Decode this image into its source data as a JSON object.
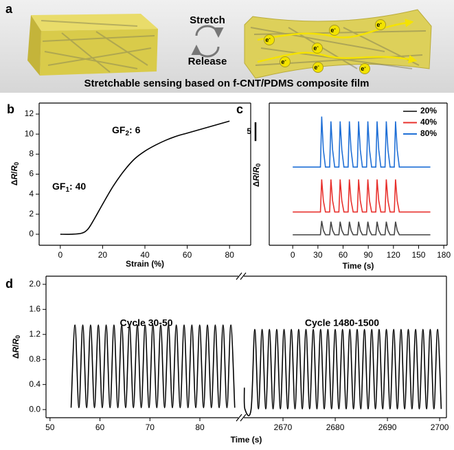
{
  "panel_a": {
    "label": "a",
    "stretch": "Stretch",
    "release": "Release",
    "caption": "Stretchable sensing based on f-CNT/PDMS composite film",
    "electron": {
      "base": "e",
      "sup": "-"
    }
  },
  "chart_data": [
    {
      "type": "line",
      "panel_label": "b",
      "xlabel": "Strain (%)",
      "ylabel": [
        "Δ",
        "R",
        "/",
        "R",
        "0"
      ],
      "color": "#000000",
      "x": [
        0,
        5,
        10,
        13,
        16,
        20,
        25,
        30,
        35,
        40,
        45,
        50,
        55,
        60,
        65,
        70,
        75,
        80
      ],
      "values": [
        0,
        0,
        0.1,
        0.5,
        1.5,
        3,
        4.8,
        6.3,
        7.5,
        8.3,
        8.9,
        9.4,
        9.8,
        10.1,
        10.4,
        10.7,
        11,
        11.3
      ],
      "xlim": [
        -10,
        90
      ],
      "ylim": [
        -1.1,
        13.1
      ],
      "xticks": [
        0,
        20,
        40,
        60,
        80
      ],
      "yticks": [
        0,
        2,
        4,
        6,
        8,
        10,
        12
      ],
      "annotations": [
        {
          "text": "GF",
          "sub": "1",
          "rest": ": 40"
        },
        {
          "text": "GF",
          "sub": "2",
          "rest": ": 6"
        }
      ]
    },
    {
      "type": "line",
      "panel_label": "c",
      "xlabel": "Time (s)",
      "ylabel": [
        "Δ",
        "R",
        "/",
        "R",
        "0"
      ],
      "scale_bar": 5,
      "legend": "upper right",
      "xlim": [
        -28,
        184
      ],
      "ylim": [
        0,
        38
      ],
      "xticks": [
        0,
        30,
        60,
        90,
        120,
        150,
        180
      ],
      "x": [
        0,
        33,
        34.5,
        36.5,
        39,
        44,
        45.5,
        47.5,
        50,
        55,
        56.5,
        58.5,
        61,
        66,
        67.5,
        69.5,
        72,
        77,
        78.5,
        80.5,
        83,
        88,
        89.5,
        91.5,
        94,
        99,
        100.5,
        102.5,
        105,
        110,
        111.5,
        113.5,
        116,
        121,
        122.5,
        124.5,
        127,
        164
      ],
      "series": [
        {
          "name": "20%",
          "color": "#444444",
          "values": [
            2.8,
            2.8,
            6.5,
            4.0,
            2.8,
            2.8,
            6.3,
            4.0,
            2.8,
            2.8,
            6.3,
            4.0,
            2.8,
            2.8,
            6.3,
            4.0,
            2.8,
            2.8,
            6.3,
            4.0,
            2.8,
            2.8,
            6.3,
            4.0,
            2.8,
            2.8,
            6.3,
            4.0,
            2.8,
            2.8,
            6.3,
            4.0,
            2.8,
            2.8,
            6.3,
            4.0,
            2.8,
            2.8
          ]
        },
        {
          "name": "40%",
          "color": "#e8302c",
          "values": [
            8.9,
            8.9,
            17.6,
            11.9,
            8.9,
            8.9,
            17.6,
            11.9,
            8.9,
            8.9,
            17.6,
            11.9,
            8.9,
            8.9,
            17.6,
            11.9,
            8.9,
            8.9,
            17.6,
            11.9,
            8.9,
            8.9,
            17.6,
            11.9,
            8.9,
            8.9,
            17.6,
            11.9,
            8.9,
            8.9,
            17.6,
            11.9,
            8.9,
            8.9,
            17.6,
            11.9,
            8.9,
            8.9
          ]
        },
        {
          "name": "80%",
          "color": "#1f6fd6",
          "values": [
            20.9,
            20.9,
            34.4,
            25.5,
            20.9,
            20.9,
            33.1,
            25.5,
            20.9,
            20.9,
            33.1,
            25.5,
            20.9,
            20.9,
            33.1,
            25.5,
            20.9,
            20.9,
            33.1,
            25.5,
            20.9,
            20.9,
            33.1,
            25.5,
            20.9,
            20.9,
            33.1,
            25.5,
            20.9,
            20.9,
            33.1,
            25.5,
            20.9,
            20.9,
            33.1,
            25.5,
            20.9,
            20.9
          ]
        }
      ]
    },
    {
      "type": "line",
      "panel_label": "d",
      "xlabel": "Time (s)",
      "ylabel": [
        "Δ",
        "R",
        "/",
        "R",
        "0"
      ],
      "color": "#000000",
      "ylim": [
        -0.13,
        2.13
      ],
      "yticks": [
        {
          "value": 0,
          "label": "0.0"
        },
        0.4,
        0.8,
        1.2,
        1.6,
        {
          "value": 2,
          "label": "2.0"
        }
      ],
      "annotations": [
        "Cycle 30-50",
        "Cycle 1480-1500"
      ],
      "segments": [
        {
          "xlim": [
            49.2,
            87.7
          ],
          "xticks": [
            50,
            60,
            70,
            80
          ],
          "x": [
            54.22,
            55.0,
            55.78,
            56.56,
            57.34,
            58.12,
            58.9,
            59.68,
            60.46,
            61.24,
            62.02,
            62.8,
            63.58,
            64.36,
            65.14,
            65.92,
            66.7,
            67.48,
            68.26,
            69.04,
            69.82,
            70.6,
            71.38,
            72.16,
            72.94,
            73.72,
            74.5,
            75.28,
            76.06,
            76.84,
            77.62,
            78.4,
            79.18,
            79.96,
            80.74,
            81.52,
            82.3,
            83.08,
            83.86,
            84.64,
            85.42,
            86.2,
            86.98
          ],
          "values": [
            0.03,
            1.35,
            0.03,
            1.35,
            0.03,
            1.35,
            0.03,
            1.35,
            0.03,
            1.35,
            0.03,
            1.35,
            0.03,
            1.35,
            0.03,
            1.35,
            0.03,
            1.35,
            0.03,
            1.35,
            0.03,
            1.35,
            0.03,
            1.35,
            0.03,
            1.35,
            0.03,
            1.35,
            0.03,
            1.35,
            0.03,
            1.35,
            0.03,
            1.35,
            0.03,
            1.35,
            0.03,
            1.35,
            0.03,
            1.35,
            0.03,
            1.35,
            0.03
          ]
        },
        {
          "xlim": [
            2662.5,
            2701.3
          ],
          "xticks": [
            2670,
            2680,
            2690,
            2700
          ],
          "x": [
            2662.6,
            2662.7,
            2663.9,
            2664.6,
            2665.3,
            2666.0,
            2666.7,
            2667.4,
            2668.1,
            2668.8,
            2669.5,
            2670.2,
            2670.9,
            2671.6,
            2672.3,
            2673.0,
            2673.7,
            2674.4,
            2675.1,
            2675.8,
            2676.5,
            2677.2,
            2677.9,
            2678.6,
            2679.3,
            2680.0,
            2680.7,
            2681.4,
            2682.1,
            2682.8,
            2683.5,
            2684.2,
            2684.9,
            2685.6,
            2686.3,
            2687.0,
            2687.7,
            2688.4,
            2689.1,
            2689.8,
            2690.5,
            2691.2,
            2691.9,
            2692.6,
            2693.3,
            2694.0,
            2694.7,
            2695.4,
            2696.1,
            2696.8,
            2697.5,
            2698.2,
            2698.9,
            2699.6,
            2700.3
          ],
          "values": [
            0.35,
            0.01,
            0.01,
            1.28,
            0.01,
            1.28,
            0.01,
            1.28,
            0.01,
            1.28,
            0.01,
            1.28,
            0.01,
            1.28,
            0.01,
            1.28,
            0.01,
            1.28,
            0.01,
            1.28,
            0.01,
            1.28,
            0.01,
            1.28,
            0.01,
            1.28,
            0.01,
            1.28,
            0.01,
            1.28,
            0.01,
            1.28,
            0.01,
            1.28,
            0.01,
            1.28,
            0.01,
            1.28,
            0.01,
            1.28,
            0.01,
            1.28,
            0.01,
            1.28,
            0.01,
            1.28,
            0.01,
            1.28,
            0.01,
            1.28,
            0.01,
            1.28,
            0.01,
            1.28,
            0.01
          ]
        }
      ]
    }
  ]
}
